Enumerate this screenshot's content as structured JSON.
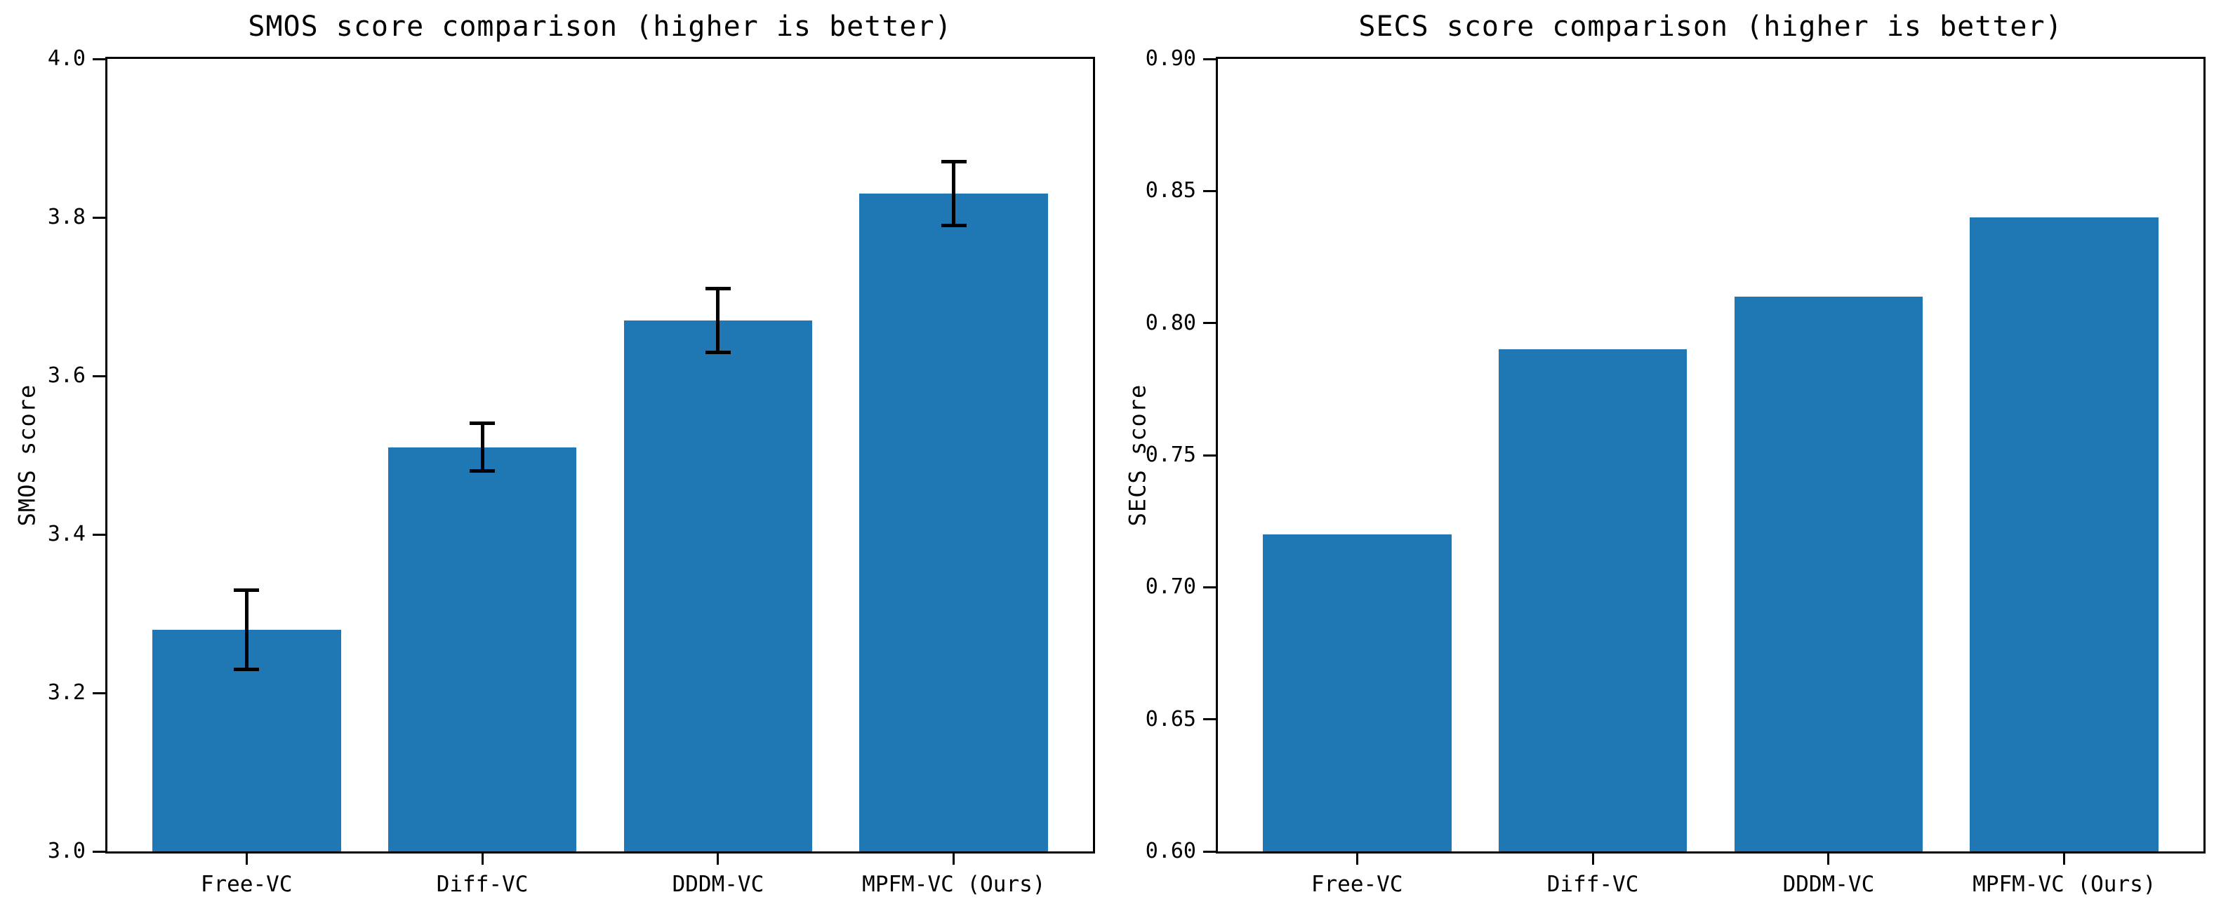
{
  "figure": {
    "background_color": "#ffffff",
    "bar_color": "#1f77b4",
    "error_bar_color": "#000000",
    "axis_color": "#000000"
  },
  "chart_data": [
    {
      "id": "smos",
      "type": "bar",
      "title": "SMOS score comparison (higher is better)",
      "xlabel": "",
      "ylabel": "SMOS score",
      "categories": [
        "Free-VC",
        "Diff-VC",
        "DDDM-VC",
        "MPFM-VC (Ours)"
      ],
      "values": [
        3.28,
        3.51,
        3.67,
        3.83
      ],
      "errors": [
        0.05,
        0.03,
        0.04,
        0.04
      ],
      "ylim": [
        3.0,
        4.0
      ],
      "yticks": [
        3.0,
        3.2,
        3.4,
        3.6,
        3.8,
        4.0
      ],
      "ytick_labels": [
        "3.0",
        "3.2",
        "3.4",
        "3.6",
        "3.8",
        "4.0"
      ],
      "bar_width": 0.8,
      "grid": false,
      "legend": null
    },
    {
      "id": "secs",
      "type": "bar",
      "title": "SECS score comparison (higher is better)",
      "xlabel": "",
      "ylabel": "SECS score",
      "categories": [
        "Free-VC",
        "Diff-VC",
        "DDDM-VC",
        "MPFM-VC (Ours)"
      ],
      "values": [
        0.72,
        0.79,
        0.81,
        0.84
      ],
      "errors": null,
      "ylim": [
        0.6,
        0.9
      ],
      "yticks": [
        0.6,
        0.65,
        0.7,
        0.75,
        0.8,
        0.85,
        0.9
      ],
      "ytick_labels": [
        "0.60",
        "0.65",
        "0.70",
        "0.75",
        "0.80",
        "0.85",
        "0.90"
      ],
      "bar_width": 0.8,
      "grid": false,
      "legend": null
    }
  ]
}
